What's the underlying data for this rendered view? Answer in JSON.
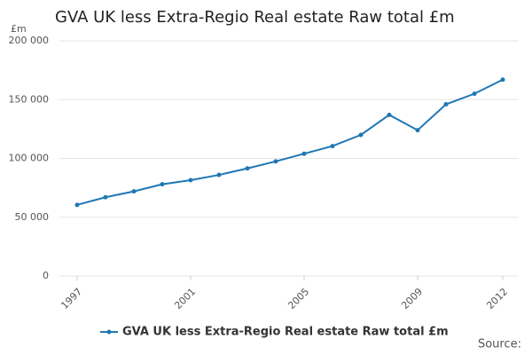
{
  "chart_data": {
    "type": "line",
    "title": "GVA UK less Extra-Regio Real estate Raw total £m",
    "y_unit": "£m",
    "source": "Source:",
    "x": [
      1997,
      1998,
      1999,
      2000,
      2001,
      2002,
      2003,
      2004,
      2005,
      2006,
      2007,
      2008,
      2009,
      2010,
      2011,
      2012
    ],
    "series": [
      {
        "name": "GVA UK less Extra-Regio Real estate Raw total £m",
        "color": "#1f77b4",
        "values": [
          60500,
          67000,
          72000,
          78000,
          81500,
          86000,
          91500,
          97500,
          104000,
          110500,
          120000,
          137000,
          124000,
          146000,
          155000,
          167000
        ]
      }
    ],
    "xlim": [
      1997,
      2012
    ],
    "xticks": [
      1997,
      2001,
      2005,
      2009,
      2012
    ],
    "ylim": [
      0,
      200000
    ],
    "yticks": [
      0,
      {
        "value": 50000,
        "label": "50 000"
      },
      {
        "value": 100000,
        "label": "100 000"
      },
      {
        "value": 150000,
        "label": "150 000"
      },
      {
        "value": 200000,
        "label": "200 000"
      }
    ],
    "grid": true
  }
}
